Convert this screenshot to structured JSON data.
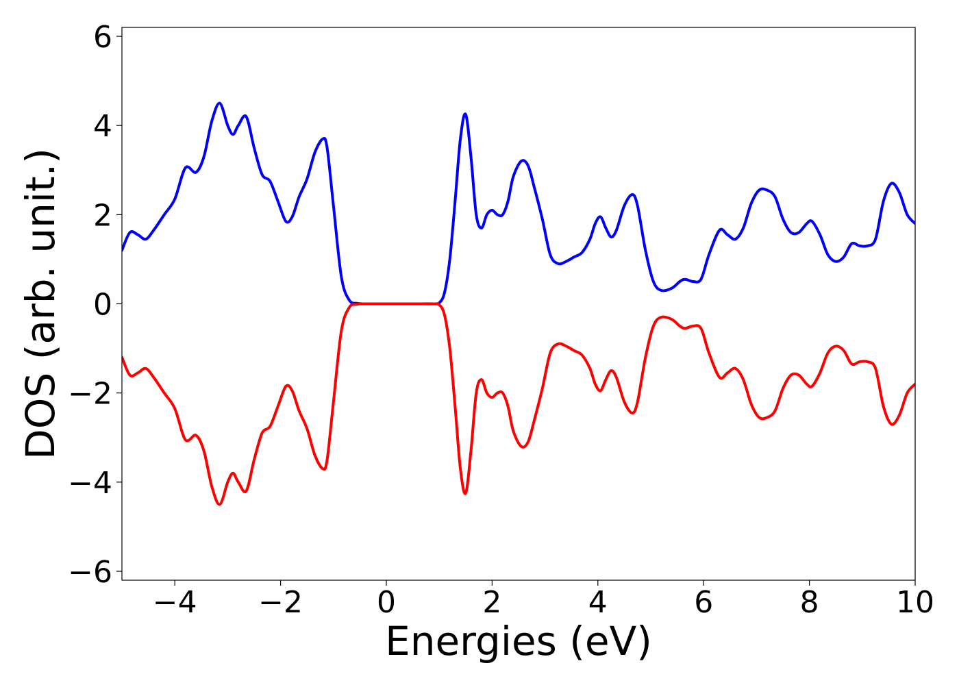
{
  "chart_data": {
    "type": "line",
    "title": "",
    "xlabel": "Energies (eV)",
    "ylabel": "DOS (arb. unit.)",
    "xlim": [
      -5,
      10
    ],
    "ylim": [
      -6.2,
      6.2
    ],
    "xticks": [
      -4,
      -2,
      0,
      2,
      4,
      6,
      8,
      10
    ],
    "yticks": [
      -6,
      -4,
      -2,
      0,
      2,
      4,
      6
    ],
    "xtick_labels": [
      "−4",
      "−2",
      "0",
      "2",
      "4",
      "6",
      "8",
      "10"
    ],
    "ytick_labels": [
      "−6",
      "−4",
      "−2",
      "0",
      "2",
      "4",
      "6"
    ],
    "grid": false,
    "legend": "none",
    "series": [
      {
        "color": "#0000ff",
        "x": [
          -5.0,
          -4.85,
          -4.7,
          -4.55,
          -4.4,
          -4.2,
          -4.0,
          -3.8,
          -3.6,
          -3.45,
          -3.3,
          -3.15,
          -3.0,
          -2.9,
          -2.8,
          -2.65,
          -2.5,
          -2.35,
          -2.2,
          -2.05,
          -1.9,
          -1.78,
          -1.65,
          -1.5,
          -1.35,
          -1.2,
          -1.12,
          -1.0,
          -0.85,
          -0.7,
          -0.55,
          -0.4,
          -0.2,
          0.0,
          0.5,
          0.9,
          1.0,
          1.1,
          1.2,
          1.3,
          1.4,
          1.5,
          1.6,
          1.7,
          1.8,
          1.9,
          2.0,
          2.1,
          2.2,
          2.3,
          2.4,
          2.55,
          2.68,
          2.8,
          2.95,
          3.1,
          3.25,
          3.4,
          3.55,
          3.7,
          3.85,
          3.95,
          4.05,
          4.15,
          4.25,
          4.35,
          4.5,
          4.65,
          4.75,
          4.9,
          5.05,
          5.2,
          5.4,
          5.55,
          5.65,
          5.8,
          5.95,
          6.1,
          6.3,
          6.45,
          6.6,
          6.75,
          6.9,
          7.05,
          7.2,
          7.35,
          7.5,
          7.65,
          7.8,
          7.95,
          8.05,
          8.2,
          8.35,
          8.5,
          8.65,
          8.8,
          8.95,
          9.1,
          9.25,
          9.4,
          9.55,
          9.7,
          9.85,
          10.0
        ],
        "y": [
          1.2,
          1.6,
          1.55,
          1.45,
          1.65,
          2.0,
          2.35,
          3.05,
          2.95,
          3.3,
          4.1,
          4.5,
          4.0,
          3.8,
          4.0,
          4.2,
          3.5,
          2.9,
          2.75,
          2.3,
          1.85,
          1.95,
          2.4,
          2.8,
          3.4,
          3.7,
          3.5,
          2.2,
          0.6,
          0.08,
          0.01,
          0.0,
          0.0,
          0.0,
          0.0,
          0.0,
          0.02,
          0.25,
          1.0,
          2.3,
          3.7,
          4.25,
          3.3,
          2.0,
          1.7,
          2.0,
          2.1,
          2.0,
          2.0,
          2.3,
          2.85,
          3.2,
          3.1,
          2.6,
          1.9,
          1.1,
          0.9,
          0.95,
          1.05,
          1.15,
          1.45,
          1.8,
          1.95,
          1.7,
          1.5,
          1.65,
          2.2,
          2.45,
          2.2,
          1.2,
          0.5,
          0.3,
          0.35,
          0.5,
          0.55,
          0.5,
          0.55,
          1.1,
          1.65,
          1.55,
          1.45,
          1.7,
          2.25,
          2.55,
          2.55,
          2.4,
          1.9,
          1.6,
          1.6,
          1.8,
          1.85,
          1.55,
          1.1,
          0.95,
          1.05,
          1.35,
          1.3,
          1.3,
          1.45,
          2.3,
          2.7,
          2.5,
          2.0,
          1.8
        ]
      },
      {
        "color": "#ff0000",
        "x": [
          -5.0,
          -4.85,
          -4.7,
          -4.55,
          -4.4,
          -4.2,
          -4.0,
          -3.8,
          -3.6,
          -3.45,
          -3.3,
          -3.15,
          -3.0,
          -2.9,
          -2.8,
          -2.65,
          -2.5,
          -2.35,
          -2.2,
          -2.05,
          -1.9,
          -1.78,
          -1.65,
          -1.5,
          -1.35,
          -1.2,
          -1.12,
          -1.0,
          -0.85,
          -0.7,
          -0.55,
          -0.4,
          -0.2,
          0.0,
          0.5,
          0.9,
          1.0,
          1.1,
          1.2,
          1.3,
          1.4,
          1.5,
          1.6,
          1.7,
          1.8,
          1.9,
          2.0,
          2.1,
          2.2,
          2.3,
          2.4,
          2.55,
          2.68,
          2.8,
          2.95,
          3.1,
          3.25,
          3.4,
          3.55,
          3.7,
          3.85,
          3.95,
          4.05,
          4.15,
          4.25,
          4.35,
          4.5,
          4.65,
          4.75,
          4.9,
          5.05,
          5.2,
          5.4,
          5.55,
          5.65,
          5.8,
          5.95,
          6.1,
          6.3,
          6.45,
          6.6,
          6.75,
          6.9,
          7.05,
          7.2,
          7.35,
          7.5,
          7.65,
          7.8,
          7.95,
          8.05,
          8.2,
          8.35,
          8.5,
          8.65,
          8.8,
          8.95,
          9.1,
          9.25,
          9.4,
          9.55,
          9.7,
          9.85,
          10.0
        ],
        "y": [
          -1.2,
          -1.6,
          -1.55,
          -1.45,
          -1.65,
          -2.0,
          -2.35,
          -3.05,
          -2.95,
          -3.3,
          -4.1,
          -4.5,
          -4.0,
          -3.8,
          -4.0,
          -4.2,
          -3.5,
          -2.9,
          -2.75,
          -2.3,
          -1.85,
          -1.95,
          -2.4,
          -2.8,
          -3.4,
          -3.7,
          -3.5,
          -2.2,
          -0.6,
          -0.08,
          -0.01,
          0.0,
          0.0,
          0.0,
          0.0,
          0.0,
          -0.02,
          -0.25,
          -1.0,
          -2.3,
          -3.7,
          -4.25,
          -3.3,
          -2.0,
          -1.7,
          -2.0,
          -2.1,
          -2.0,
          -2.0,
          -2.3,
          -2.85,
          -3.2,
          -3.1,
          -2.6,
          -1.9,
          -1.1,
          -0.9,
          -0.95,
          -1.05,
          -1.15,
          -1.45,
          -1.8,
          -1.95,
          -1.7,
          -1.5,
          -1.65,
          -2.2,
          -2.45,
          -2.2,
          -1.2,
          -0.5,
          -0.3,
          -0.35,
          -0.5,
          -0.55,
          -0.5,
          -0.55,
          -1.1,
          -1.65,
          -1.55,
          -1.45,
          -1.7,
          -2.25,
          -2.55,
          -2.55,
          -2.4,
          -1.9,
          -1.6,
          -1.6,
          -1.8,
          -1.85,
          -1.55,
          -1.1,
          -0.95,
          -1.05,
          -1.35,
          -1.3,
          -1.3,
          -1.45,
          -2.3,
          -2.7,
          -2.5,
          -2.0,
          -1.8
        ]
      }
    ]
  }
}
